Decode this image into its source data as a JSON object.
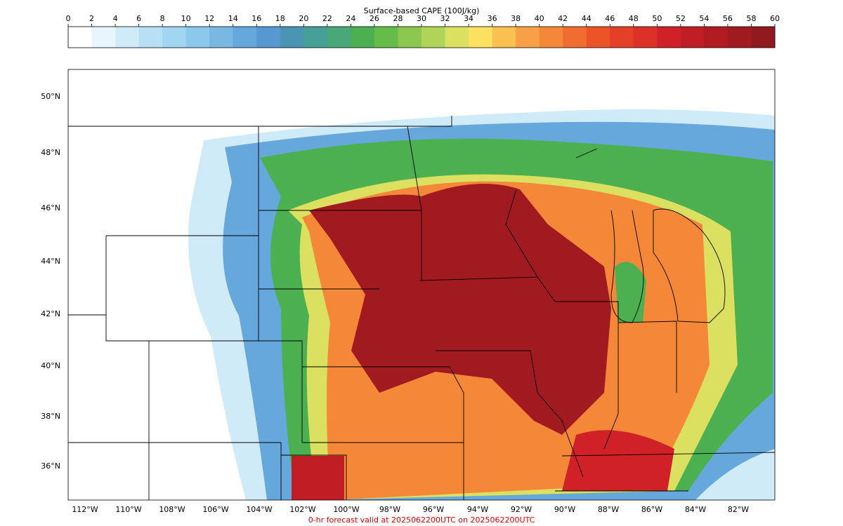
{
  "colorbar": {
    "title": "Surface-based CAPE (100J/kg)",
    "ticks": [
      0,
      2,
      4,
      6,
      8,
      10,
      12,
      14,
      16,
      18,
      20,
      22,
      24,
      26,
      28,
      30,
      32,
      34,
      36,
      38,
      40,
      42,
      44,
      46,
      48,
      50,
      52,
      54,
      56,
      58,
      60
    ],
    "colors": [
      "#ffffff",
      "#e8f5fc",
      "#d0ebf8",
      "#b8e0f5",
      "#a0d6f2",
      "#8cc8ec",
      "#78b8e3",
      "#66a8dc",
      "#5898d0",
      "#4a94b4",
      "#46a096",
      "#48a878",
      "#4cb050",
      "#66bc48",
      "#8cc850",
      "#b0d458",
      "#dce060",
      "#fce060",
      "#fac050",
      "#f8a048",
      "#f48838",
      "#f06c30",
      "#ec5428",
      "#e44028",
      "#dc3028",
      "#d02028",
      "#c01e24",
      "#b01c22",
      "#a01a20",
      "#901a1e"
    ]
  },
  "lat_labels": [
    "50°N",
    "48°N",
    "46°N",
    "44°N",
    "42°N",
    "40°N",
    "38°N",
    "36°N"
  ],
  "lon_labels": [
    "112°W",
    "110°W",
    "108°W",
    "106°W",
    "104°W",
    "102°W",
    "100°W",
    "98°W",
    "96°W",
    "94°W",
    "92°W",
    "90°W",
    "88°W",
    "86°W",
    "84°W",
    "82°W"
  ],
  "footer": "0-hr forecast valid at 2025062200UTC on 2025062200UTC"
}
